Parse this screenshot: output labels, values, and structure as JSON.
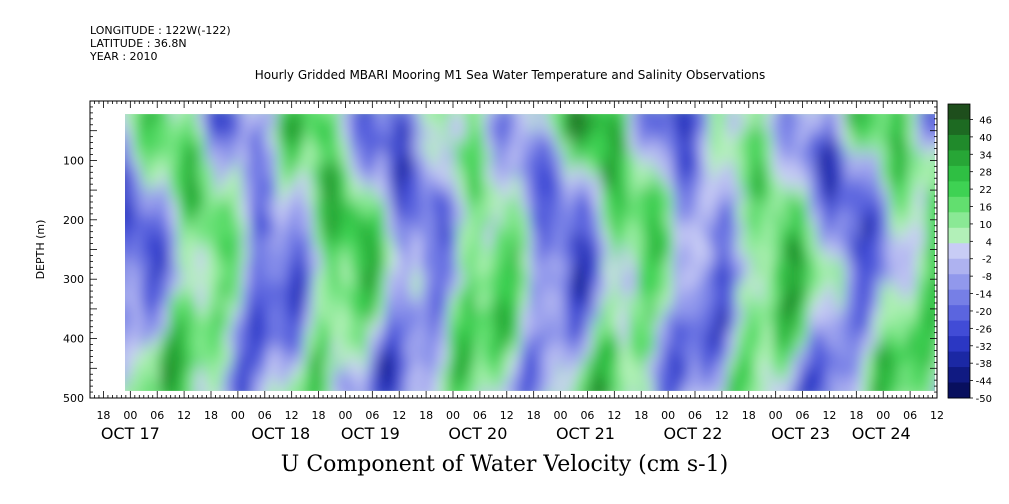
{
  "meta": {
    "longitude": "LONGITUDE : 122W(-122)",
    "latitude": "LATITUDE : 36.8N",
    "year": "YEAR : 2010"
  },
  "chart_data": {
    "type": "heatmap",
    "title": "Hourly Gridded MBARI Mooring M1 Sea Water Temperature and Salinity Observations",
    "xlabel": "U Component of Water Velocity (cm s-1)",
    "ylabel": "DEPTH (m)",
    "y_range": [
      0,
      500
    ],
    "y_reversed": true,
    "y_ticks": [
      100,
      200,
      300,
      400,
      500
    ],
    "y_tick_labels": [
      "100",
      "200",
      "300",
      "400",
      "500"
    ],
    "x_range_hours": [
      -9,
      180
    ],
    "x_start": "OCT 17 2010 00:00",
    "x_tick_hours": [
      "18",
      "00",
      "06",
      "12",
      "18",
      "00",
      "06",
      "12",
      "18",
      "00",
      "06",
      "12",
      "18",
      "00",
      "06",
      "12",
      "18",
      "00",
      "06",
      "12",
      "18",
      "00",
      "06",
      "12",
      "18",
      "00",
      "06",
      "12",
      "18",
      "00",
      "06",
      "12"
    ],
    "day_labels": [
      "OCT 17",
      "OCT 18",
      "OCT 19",
      "OCT 20",
      "OCT 21",
      "OCT 22",
      "OCT 23",
      "OCT 24"
    ],
    "data_extent": {
      "depth": [
        22,
        488
      ]
    },
    "grid": false,
    "colorbar": {
      "placement": "right",
      "tick_labels": [
        "46",
        "40",
        "34",
        "28",
        "22",
        "16",
        "10",
        "4",
        "-2",
        "-8",
        "-14",
        "-20",
        "-26",
        "-32",
        "-38",
        "-44",
        "-50"
      ],
      "levels_top_to_bottom": [
        "#1e4e1c",
        "#1d6a22",
        "#208a2b",
        "#27a636",
        "#2fbf43",
        "#3ed253",
        "#62df6f",
        "#8ae995",
        "#b2f0b8",
        "#c8ccf5",
        "#aeb2f0",
        "#9198ec",
        "#767fe6",
        "#5b65df",
        "#414cd6",
        "#2b37c3",
        "#1b28a4",
        "#101a82",
        "#080f5e"
      ]
    },
    "field_pattern": {
      "description_range": "positive (green) and negative (blue) velocity bands alternating in time, mostly vertical streaks",
      "value_range": [
        -50,
        46
      ]
    }
  }
}
